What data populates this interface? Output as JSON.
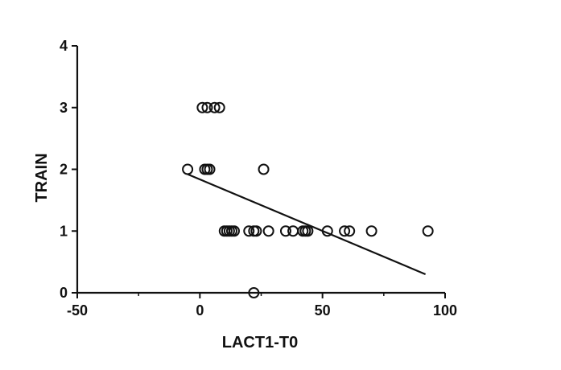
{
  "chart_data": {
    "type": "scatter",
    "title": "",
    "xlabel": "LACT1-T0",
    "ylabel": "TRAIN",
    "xlim": [
      -50,
      100
    ],
    "ylim": [
      0,
      4
    ],
    "xticks": [
      "-50",
      "0",
      "50",
      "100"
    ],
    "yticks": [
      "0",
      "1",
      "2",
      "3",
      "4"
    ],
    "grid": false,
    "legend": "none",
    "marker": "open-circle",
    "points": [
      {
        "x": 1,
        "y": 3
      },
      {
        "x": 3,
        "y": 3
      },
      {
        "x": 6,
        "y": 3
      },
      {
        "x": 8,
        "y": 3
      },
      {
        "x": -5,
        "y": 2
      },
      {
        "x": 2,
        "y": 2
      },
      {
        "x": 3,
        "y": 2
      },
      {
        "x": 4,
        "y": 2
      },
      {
        "x": 26,
        "y": 2
      },
      {
        "x": 10,
        "y": 1
      },
      {
        "x": 11,
        "y": 1
      },
      {
        "x": 12,
        "y": 1
      },
      {
        "x": 13,
        "y": 1
      },
      {
        "x": 14,
        "y": 1
      },
      {
        "x": 20,
        "y": 1
      },
      {
        "x": 22,
        "y": 1
      },
      {
        "x": 23,
        "y": 1
      },
      {
        "x": 28,
        "y": 1
      },
      {
        "x": 35,
        "y": 1
      },
      {
        "x": 38,
        "y": 1
      },
      {
        "x": 42,
        "y": 1
      },
      {
        "x": 43,
        "y": 1
      },
      {
        "x": 44,
        "y": 1
      },
      {
        "x": 52,
        "y": 1
      },
      {
        "x": 59,
        "y": 1
      },
      {
        "x": 61,
        "y": 1
      },
      {
        "x": 70,
        "y": 1
      },
      {
        "x": 93,
        "y": 1
      },
      {
        "x": 22,
        "y": 0
      }
    ],
    "fit_line": {
      "x1": -5,
      "y1": 1.92,
      "x2": 92,
      "y2": 0.3
    },
    "colors": {
      "marker": "#111111",
      "axis": "#111111",
      "line": "#111111"
    }
  }
}
